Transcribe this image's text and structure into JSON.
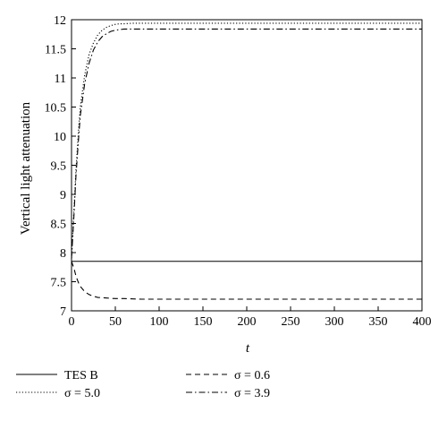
{
  "chart_data": {
    "type": "line",
    "xlabel": "t",
    "ylabel": "Vertical light attenuation",
    "xlim": [
      0,
      400
    ],
    "ylim": [
      7,
      12
    ],
    "xticks": [
      0,
      50,
      100,
      150,
      200,
      250,
      300,
      350,
      400
    ],
    "yticks": [
      7,
      7.5,
      8,
      8.5,
      9,
      9.5,
      10,
      10.5,
      11,
      11.5,
      12
    ],
    "grid": false,
    "legend_position": "bottom",
    "series": [
      {
        "name": "TES B",
        "style": "solid",
        "x": [
          0,
          50,
          100,
          200,
          300,
          400
        ],
        "y": [
          7.85,
          7.85,
          7.85,
          7.85,
          7.85,
          7.85
        ]
      },
      {
        "name": "σ = 5.0",
        "style": "dotted",
        "x": [
          0,
          3,
          5,
          8,
          10,
          15,
          20,
          25,
          30,
          35,
          40,
          45,
          50,
          55,
          60,
          70,
          80,
          100,
          150,
          200,
          300,
          400
        ],
        "y": [
          7.9,
          8.8,
          9.4,
          10.1,
          10.5,
          11.05,
          11.4,
          11.6,
          11.74,
          11.82,
          11.87,
          11.9,
          11.92,
          11.93,
          11.93,
          11.94,
          11.94,
          11.94,
          11.94,
          11.94,
          11.94,
          11.94
        ]
      },
      {
        "name": "σ = 0.6",
        "style": "dashed",
        "x": [
          0,
          3,
          5,
          8,
          10,
          15,
          20,
          25,
          30,
          40,
          50,
          60,
          80,
          100,
          150,
          200,
          300,
          400
        ],
        "y": [
          7.85,
          7.72,
          7.6,
          7.48,
          7.42,
          7.33,
          7.28,
          7.25,
          7.23,
          7.22,
          7.21,
          7.21,
          7.2,
          7.2,
          7.2,
          7.2,
          7.2,
          7.2
        ]
      },
      {
        "name": "σ = 3.9",
        "style": "dashdot",
        "x": [
          0,
          3,
          5,
          8,
          10,
          15,
          20,
          25,
          30,
          35,
          40,
          45,
          50,
          55,
          60,
          70,
          80,
          100,
          150,
          200,
          300,
          400
        ],
        "y": [
          7.9,
          8.7,
          9.3,
          9.95,
          10.35,
          10.9,
          11.25,
          11.48,
          11.62,
          11.71,
          11.76,
          11.8,
          11.82,
          11.83,
          11.84,
          11.84,
          11.84,
          11.84,
          11.84,
          11.84,
          11.84,
          11.84
        ]
      }
    ]
  }
}
